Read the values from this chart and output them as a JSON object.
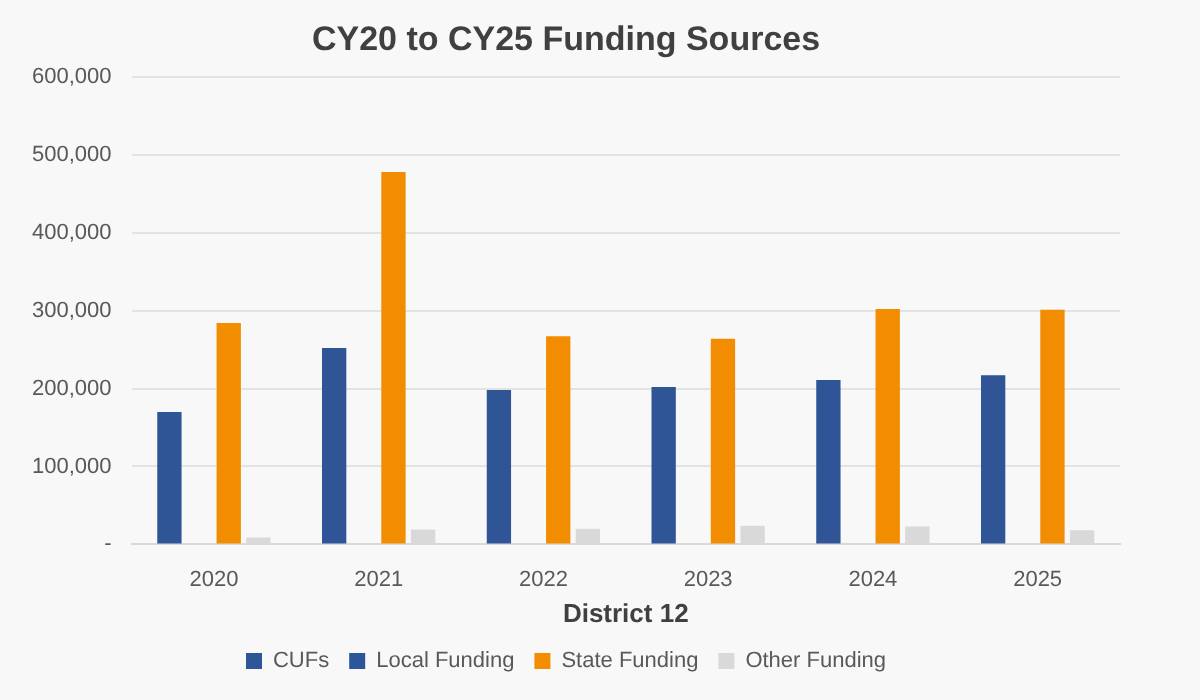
{
  "chart_data": {
    "type": "bar",
    "title": "CY20 to CY25 Funding Sources",
    "xlabel": "District 12",
    "categories": [
      "2020",
      "2021",
      "2022",
      "2023",
      "2024",
      "2025"
    ],
    "series": [
      {
        "name": "CUFs",
        "color": "#2f5597",
        "values": [
          170000,
          252000,
          198000,
          202000,
          211000,
          217000
        ]
      },
      {
        "name": "Local Funding",
        "color": "#2b579a",
        "values": [
          0,
          0,
          0,
          0,
          0,
          0
        ]
      },
      {
        "name": "State Funding",
        "color": "#f28c00",
        "values": [
          284000,
          478000,
          267000,
          264000,
          302000,
          301000
        ]
      },
      {
        "name": "Other Funding",
        "color": "#d9d9d9",
        "values": [
          9000,
          19000,
          20000,
          24000,
          23000,
          18000
        ]
      }
    ],
    "ylim": [
      0,
      600000
    ],
    "yticks": [
      {
        "value": 0,
        "label": "-"
      },
      {
        "value": 100000,
        "label": "100,000"
      },
      {
        "value": 200000,
        "label": "200,000"
      },
      {
        "value": 300000,
        "label": "300,000"
      },
      {
        "value": 400000,
        "label": "400,000"
      },
      {
        "value": 500000,
        "label": "500,000"
      },
      {
        "value": 600000,
        "label": "600,000"
      }
    ],
    "grid": "y",
    "legend": "bottom"
  }
}
